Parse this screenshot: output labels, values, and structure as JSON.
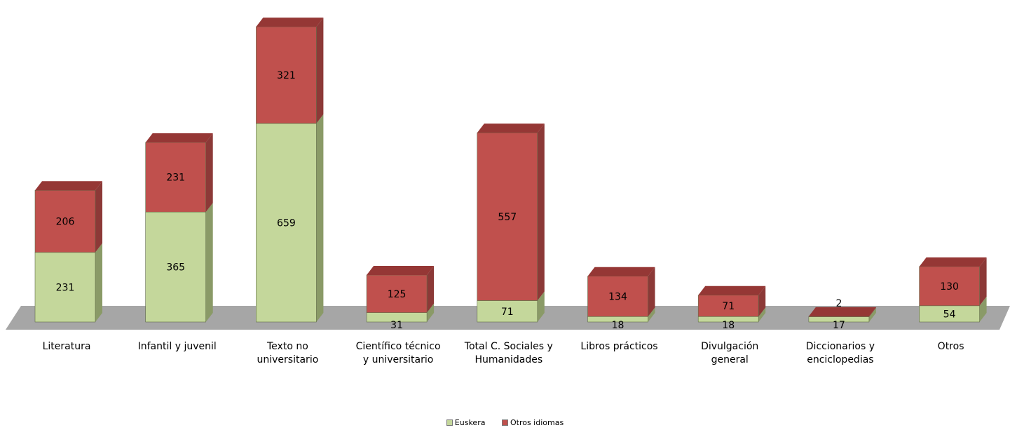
{
  "chart_data": {
    "type": "bar",
    "stacked": true,
    "three_d": true,
    "categories": [
      [
        "Literatura"
      ],
      [
        "Infantil y juvenil"
      ],
      [
        "Texto no",
        "universitario"
      ],
      [
        "Científico  técnico",
        "y universitario"
      ],
      [
        "Total C. Sociales y",
        "Humanidades"
      ],
      [
        "Libros prácticos"
      ],
      [
        "Divulgación",
        "general"
      ],
      [
        "Diccionarios y",
        "enciclopedias"
      ],
      [
        "Otros"
      ]
    ],
    "series": [
      {
        "name": "Euskera",
        "values": [
          231,
          365,
          659,
          31,
          71,
          18,
          18,
          17,
          54
        ],
        "color": "#c4d79b"
      },
      {
        "name": "Otros idiomas",
        "values": [
          206,
          231,
          321,
          125,
          557,
          134,
          71,
          2,
          130
        ],
        "color": "#c0504d"
      }
    ],
    "title": "",
    "xlabel": "",
    "ylabel": "",
    "ylim": [
      0,
      1000
    ],
    "grid": false,
    "legend_position": "bottom"
  }
}
